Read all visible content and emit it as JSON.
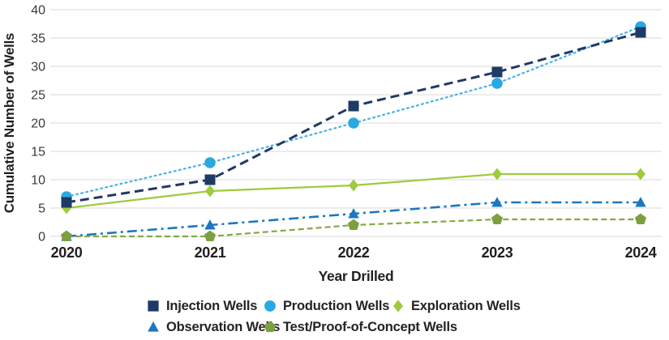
{
  "chart_data": {
    "type": "line",
    "title": "",
    "xlabel": "Year Drilled",
    "ylabel": "Cumulative Number of Wells",
    "categories": [
      "2020",
      "2021",
      "2022",
      "2023",
      "2024"
    ],
    "yticks": [
      0,
      5,
      10,
      15,
      20,
      25,
      30,
      35,
      40
    ],
    "ylim": [
      0,
      40
    ],
    "grid": "horizontal",
    "gridline_color": "#D8D8D8",
    "tick_label_color": "#3A3A3A",
    "axis_title_color": "#231F20",
    "legend_position": "bottom-left",
    "series": [
      {
        "name": "Injection Wells",
        "values": [
          6,
          10,
          23,
          29,
          36
        ],
        "color": "#1E3A66",
        "line_color": "#1E3A66",
        "marker": "square",
        "line_style": "dashed"
      },
      {
        "name": "Production Wells",
        "values": [
          7,
          13,
          20,
          27,
          37
        ],
        "color": "#29A9E1",
        "line_color": "#4AB2E3",
        "marker": "circle",
        "line_style": "dotted"
      },
      {
        "name": "Exploration Wells",
        "values": [
          5,
          8,
          9,
          11,
          11
        ],
        "color": "#9DCB3C",
        "line_color": "#9DCB3C",
        "marker": "diamond",
        "line_style": "solid"
      },
      {
        "name": "Observation Wells",
        "values": [
          0,
          2,
          4,
          6,
          6
        ],
        "color": "#1C77BE",
        "line_color": "#1C77BE",
        "marker": "triangle",
        "line_style": "dash-dot"
      },
      {
        "name": "Test/Proof-of-Concept Wells",
        "values": [
          0,
          0,
          2,
          3,
          3
        ],
        "color": "#7CA03F",
        "line_color": "#85A843",
        "marker": "pentagon",
        "line_style": "short-dash"
      }
    ],
    "legend_rows": [
      [
        "Injection Wells",
        "Production Wells",
        "Exploration Wells"
      ],
      [
        "Observation Wells",
        "Test/Proof-of-Concept Wells"
      ]
    ]
  }
}
